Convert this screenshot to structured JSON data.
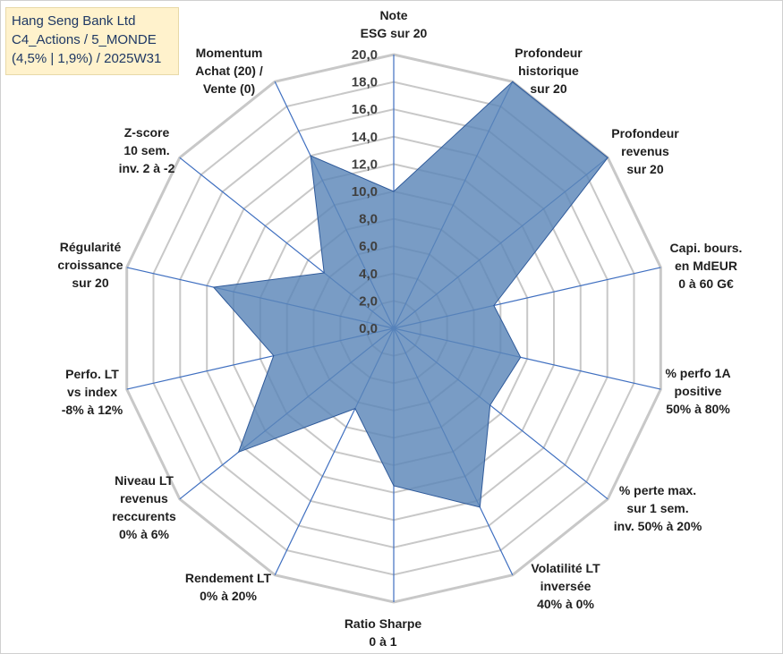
{
  "title_box": {
    "line1": "Hang Seng Bank Ltd",
    "line2": "C4_Actions / 5_MONDE",
    "line3": "(4,5% | 1,9%) / 2025W31"
  },
  "colors": {
    "fill": "#5b86b8",
    "stroke": "#2f5a9a",
    "grid": "#c8c8c8",
    "spoke": "#3f6fc0",
    "title_bg": "#fff2cc",
    "title_text": "#1f3864"
  },
  "chart_data": {
    "type": "radar",
    "r_range": [
      0,
      20
    ],
    "grid": true,
    "tick_labels": [
      "0,0",
      "2,0",
      "4,0",
      "6,0",
      "8,0",
      "10,0",
      "12,0",
      "14,0",
      "16,0",
      "18,0",
      "20,0"
    ],
    "axes": [
      {
        "label": [
          "Note",
          "ESG sur 20"
        ],
        "value": 10
      },
      {
        "label": [
          "Profondeur",
          "historique",
          "sur 20"
        ],
        "value": 20
      },
      {
        "label": [
          "Profondeur",
          "revenus",
          "sur 20"
        ],
        "value": 20
      },
      {
        "label": [
          "Capi. bours.",
          "en MdEUR",
          "0 à 60 G€"
        ],
        "value": 7.5
      },
      {
        "label": [
          "% perfo 1A",
          "positive",
          "50% à 80%"
        ],
        "value": 9.5
      },
      {
        "label": [
          "% perte max.",
          "sur 1 sem.",
          "inv. 50% à 20%"
        ],
        "value": 9
      },
      {
        "label": [
          "Volatilité LT",
          "inversée",
          "40% à 0%"
        ],
        "value": 14.5
      },
      {
        "label": [
          "Ratio Sharpe",
          "0 à 1"
        ],
        "value": 11.5
      },
      {
        "label": [
          "Rendement LT",
          "0% à 20%"
        ],
        "value": 6.5
      },
      {
        "label": [
          "Niveau LT",
          "revenus",
          "reccurents",
          "0% à 6%"
        ],
        "value": 14.5
      },
      {
        "label": [
          "Perfo. LT",
          "vs index",
          "-8% à 12%"
        ],
        "value": 9
      },
      {
        "label": [
          "Régularité",
          "croissance",
          "sur 20"
        ],
        "value": 13.5
      },
      {
        "label": [
          "Z-score",
          "10 sem.",
          "inv. 2 à -2"
        ],
        "value": 6.5
      },
      {
        "label": [
          "Momentum",
          "Achat (20) /",
          "Vente (0)"
        ],
        "value": 14
      }
    ]
  }
}
